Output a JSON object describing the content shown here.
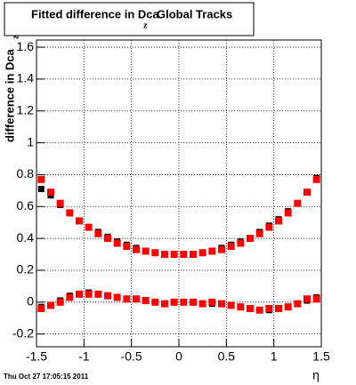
{
  "chart_data": {
    "type": "scatter",
    "title": "Fitted difference in Dca",
    "title_subscript": "z",
    "title_suffix": "Global Tracks",
    "y_label": "difference in Dca",
    "y_label_subscript": "z",
    "x_label": "η",
    "timestamp": "Thu Oct 27 17:05:15 2011",
    "x": [
      -1.45,
      -1.35,
      -1.25,
      -1.15,
      -1.05,
      -0.95,
      -0.85,
      -0.75,
      -0.65,
      -0.55,
      -0.45,
      -0.35,
      -0.25,
      -0.15,
      -0.05,
      0.05,
      0.15,
      0.25,
      0.35,
      0.45,
      0.55,
      0.65,
      0.75,
      0.85,
      0.95,
      1.05,
      1.15,
      1.25,
      1.35,
      1.45
    ],
    "series": [
      {
        "color": "#000000",
        "values": [
          0.71,
          0.67,
          0.61,
          0.56,
          0.51,
          0.47,
          0.44,
          0.41,
          0.38,
          0.36,
          0.34,
          0.32,
          0.31,
          0.3,
          0.3,
          0.3,
          0.3,
          0.31,
          0.32,
          0.34,
          0.36,
          0.38,
          0.4,
          0.44,
          0.48,
          0.52,
          0.57,
          0.62,
          0.69,
          0.78
        ]
      },
      {
        "color": "#000000",
        "values": [
          -0.03,
          -0.02,
          0.01,
          0.04,
          0.05,
          0.06,
          0.05,
          0.04,
          0.03,
          0.02,
          0.02,
          0.01,
          0.0,
          -0.01,
          0.0,
          0.0,
          0.0,
          -0.01,
          -0.01,
          -0.01,
          -0.02,
          -0.03,
          -0.04,
          -0.05,
          -0.05,
          -0.04,
          -0.03,
          -0.01,
          0.01,
          0.03
        ]
      },
      {
        "color": "#ff0000",
        "values": [
          0.77,
          0.69,
          0.62,
          0.56,
          0.51,
          0.47,
          0.43,
          0.4,
          0.37,
          0.35,
          0.33,
          0.32,
          0.31,
          0.3,
          0.3,
          0.3,
          0.3,
          0.31,
          0.32,
          0.33,
          0.35,
          0.37,
          0.4,
          0.43,
          0.47,
          0.51,
          0.56,
          0.62,
          0.69,
          0.77
        ]
      },
      {
        "color": "#ff0000",
        "values": [
          -0.04,
          -0.02,
          0.0,
          0.03,
          0.05,
          0.05,
          0.05,
          0.04,
          0.03,
          0.02,
          0.02,
          0.01,
          0.0,
          -0.01,
          0.0,
          0.0,
          0.0,
          -0.01,
          0.0,
          -0.01,
          -0.02,
          -0.03,
          -0.04,
          -0.05,
          -0.04,
          -0.04,
          -0.03,
          -0.01,
          0.02,
          0.02
        ]
      }
    ],
    "xlim": [
      -1.5,
      1.5
    ],
    "xticks": [
      -1.5,
      -1,
      -0.5,
      0,
      0.5,
      1,
      1.5
    ],
    "ylim": [
      -0.28,
      1.645
    ],
    "yticks": [
      -0.2,
      0,
      0.2,
      0.4,
      0.6,
      0.8,
      1,
      1.2,
      1.4,
      1.6
    ],
    "grid": true
  }
}
